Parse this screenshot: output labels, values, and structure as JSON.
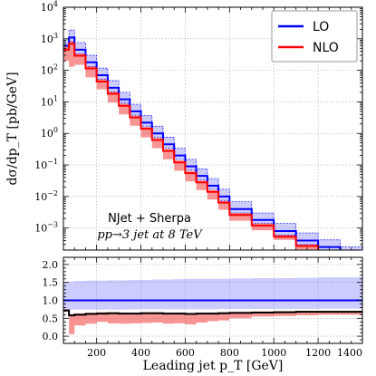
{
  "chart_data": [
    {
      "type": "line",
      "panel": "main",
      "ylabel": "dσ/dp_T [pb/GeV]",
      "yscale": "log",
      "xlim": [
        50,
        1400
      ],
      "ylim": [
        0.0002,
        10000
      ],
      "grid": true,
      "legend_placement": "top-right",
      "annotation_lines": [
        "NJet + Sherpa",
        "pp→3 jet at 8 TeV"
      ],
      "x_edges": [
        50,
        75,
        100,
        150,
        200,
        250,
        300,
        350,
        400,
        450,
        500,
        550,
        600,
        650,
        700,
        750,
        800,
        900,
        1000,
        1100,
        1200,
        1300,
        1400
      ],
      "ytick_exponents": [
        -3,
        -2,
        -1,
        0,
        1,
        2,
        3,
        4
      ],
      "series": [
        {
          "name": "LO",
          "color": "#0000ff",
          "values": [
            600,
            1100,
            450,
            180,
            70,
            28,
            12,
            5,
            2.2,
            1,
            0.45,
            0.2,
            0.09,
            0.045,
            0.022,
            0.01,
            0.004,
            0.0018,
            0.0008,
            0.0004,
            0.00025,
            0.00015
          ],
          "band_low": [
            450,
            800,
            330,
            130,
            52,
            21,
            9,
            3.8,
            1.7,
            0.76,
            0.34,
            0.15,
            0.068,
            0.034,
            0.017,
            0.0075,
            0.003,
            0.0014,
            0.0006,
            0.0003,
            0.00019,
            0.00011
          ],
          "band_high": [
            1000,
            1900,
            760,
            300,
            118,
            47,
            20,
            8.4,
            3.7,
            1.7,
            0.76,
            0.34,
            0.15,
            0.076,
            0.037,
            0.017,
            0.0068,
            0.003,
            0.0014,
            0.0007,
            0.00042,
            0.00025
          ]
        },
        {
          "name": "NLO",
          "color": "#ff0000",
          "values": [
            450,
            700,
            290,
            115,
            44,
            18,
            7.5,
            3.2,
            1.4,
            0.62,
            0.28,
            0.12,
            0.055,
            0.028,
            0.014,
            0.0064,
            0.0026,
            0.0012,
            0.00053,
            0.00027,
            0.00017,
            0.0001
          ],
          "band_low": [
            200,
            130,
            150,
            60,
            25,
            9.5,
            4,
            1.75,
            0.75,
            0.34,
            0.15,
            0.066,
            0.03,
            0.016,
            0.008,
            0.0038,
            0.0017,
            0.00085,
            0.00042,
            0.00021,
            0.00013,
            7.5e-05
          ],
          "band_high": [
            560,
            850,
            340,
            135,
            52,
            21,
            8.8,
            3.7,
            1.6,
            0.72,
            0.32,
            0.14,
            0.064,
            0.032,
            0.016,
            0.0073,
            0.003,
            0.0014,
            0.0006,
            0.0003,
            0.00019,
            0.00011
          ]
        }
      ]
    },
    {
      "type": "line",
      "panel": "ratio",
      "xlabel": "Leading jet p_T [GeV]",
      "xlim": [
        50,
        1400
      ],
      "ylim": [
        -0.2,
        2.2
      ],
      "grid": true,
      "xticks": [
        200,
        400,
        600,
        800,
        1000,
        1200,
        1400
      ],
      "yticks": [
        0.0,
        0.5,
        1.0,
        1.5,
        2.0
      ],
      "ytick_labels": [
        "0.0",
        "0.5",
        "1.0",
        "1.5",
        "2.0"
      ],
      "x_edges": [
        50,
        75,
        100,
        150,
        200,
        250,
        300,
        350,
        400,
        450,
        500,
        550,
        600,
        650,
        700,
        750,
        800,
        900,
        1000,
        1100,
        1200,
        1300,
        1400
      ],
      "series": [
        {
          "name": "LO",
          "color": "#0000ff",
          "values": [
            1,
            1,
            1,
            1,
            1,
            1,
            1,
            1,
            1,
            1,
            1,
            1,
            1,
            1,
            1,
            1,
            1,
            1,
            1,
            1,
            1,
            1
          ],
          "band_low": [
            0.72,
            0.74,
            0.74,
            0.74,
            0.74,
            0.74,
            0.74,
            0.75,
            0.75,
            0.75,
            0.75,
            0.75,
            0.75,
            0.75,
            0.75,
            0.76,
            0.76,
            0.76,
            0.76,
            0.76,
            0.77,
            0.77
          ],
          "band_high": [
            1.5,
            1.52,
            1.54,
            1.55,
            1.55,
            1.56,
            1.56,
            1.57,
            1.57,
            1.58,
            1.58,
            1.59,
            1.6,
            1.6,
            1.6,
            1.6,
            1.61,
            1.62,
            1.62,
            1.63,
            1.64,
            1.64
          ]
        },
        {
          "name": "NLO",
          "color": "#ff0000",
          "values": [
            0.72,
            0.58,
            0.6,
            0.62,
            0.63,
            0.64,
            0.63,
            0.63,
            0.64,
            0.64,
            0.63,
            0.63,
            0.62,
            0.63,
            0.63,
            0.64,
            0.65,
            0.66,
            0.67,
            0.68,
            0.68,
            0.68
          ],
          "band_low": [
            0.68,
            0.06,
            0.3,
            0.35,
            0.4,
            0.36,
            0.35,
            0.36,
            0.37,
            0.38,
            0.35,
            0.36,
            0.33,
            0.38,
            0.42,
            0.44,
            0.5,
            0.55,
            0.56,
            0.58,
            0.6,
            0.6
          ],
          "band_high": [
            0.75,
            0.62,
            0.64,
            0.66,
            0.67,
            0.67,
            0.66,
            0.66,
            0.67,
            0.67,
            0.66,
            0.66,
            0.65,
            0.66,
            0.66,
            0.67,
            0.68,
            0.69,
            0.7,
            0.71,
            0.71,
            0.71
          ]
        }
      ]
    }
  ]
}
